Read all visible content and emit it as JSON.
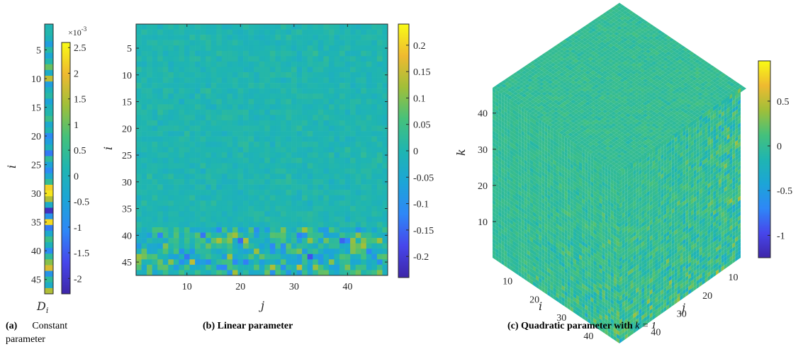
{
  "colormap": "parula",
  "colors": {
    "low": "#3e26a8",
    "mid": "#1fb5b1",
    "high": "#f9fb15"
  },
  "captions": {
    "a": {
      "tag": "(a)",
      "text": "Constant",
      "text2": "parameter"
    },
    "b": {
      "tag": "(b)",
      "text": "Linear parameter"
    },
    "c": {
      "tag": "(c)",
      "text": "Quadratic parameter with ",
      "math": "k = 1"
    }
  },
  "chart_data": [
    {
      "id": "a",
      "type": "heatmap",
      "xlabel": "D_i",
      "ylabel": "i",
      "rows": 47,
      "cols": 1,
      "yticks": [
        5,
        10,
        15,
        20,
        25,
        30,
        35,
        40,
        45
      ],
      "colorbar": {
        "ticks": [
          2.5,
          2,
          1.5,
          1,
          0.5,
          0,
          -0.5,
          -1,
          -1.5,
          -2
        ],
        "tick_labels": [
          "2.5",
          "2",
          "1.5",
          "1",
          "0.5",
          "0",
          "-0.5",
          "-1",
          "-1.5",
          "-2"
        ],
        "exponent": "×10",
        "exponent_power": "-3",
        "range": [
          -2.3,
          2.6
        ]
      },
      "values": [
        0.1,
        0.2,
        0.0,
        -0.6,
        0.3,
        -0.4,
        0.2,
        1.0,
        -0.2,
        1.6,
        -0.6,
        0.0,
        0.3,
        -0.5,
        0.0,
        0.2,
        0.6,
        -0.3,
        0.1,
        -1.0,
        -0.6,
        0.0,
        -1.2,
        0.4,
        -0.5,
        -1.0,
        -0.3,
        0.5,
        2.2,
        2.4,
        1.5,
        -0.2,
        -2.1,
        -0.8,
        2.3,
        -1.2,
        -0.3,
        0.6,
        0.0,
        -1.0,
        0.4,
        1.2,
        1.8,
        -0.8,
        0.4,
        -0.2,
        1.5
      ]
    },
    {
      "id": "b",
      "type": "heatmap",
      "xlabel": "j",
      "ylabel": "i",
      "rows": 47,
      "cols": 47,
      "xticks": [
        10,
        20,
        30,
        40
      ],
      "yticks": [
        5,
        10,
        15,
        20,
        25,
        30,
        35,
        40,
        45
      ],
      "colorbar": {
        "ticks": [
          0.2,
          0.15,
          0.1,
          0.05,
          0,
          -0.05,
          -0.1,
          -0.15,
          -0.2
        ],
        "tick_labels": [
          "0.2",
          "0.15",
          "0.1",
          "0.05",
          "0",
          "-0.05",
          "-0.1",
          "-0.15",
          "-0.2"
        ],
        "range": [
          -0.24,
          0.24
        ]
      },
      "value_spread": "small (|v| < 0.05) in rows 1–38, large (|v| up to 0.24) in rows 39–47"
    },
    {
      "id": "c",
      "type": "heatmap",
      "projection": "3d-cube",
      "xlabel": "j",
      "ylabel": "i",
      "zlabel": "k",
      "itick": [
        10,
        20,
        30,
        40
      ],
      "jtick": [
        10,
        20,
        30,
        40
      ],
      "ktick": [
        10,
        20,
        30,
        40
      ],
      "colorbar": {
        "ticks": [
          0.5,
          0,
          -0.5,
          -1
        ],
        "tick_labels": [
          "0.5",
          "0",
          "-0.5",
          "-1"
        ],
        "range": [
          -1.25,
          0.95
        ]
      }
    }
  ]
}
